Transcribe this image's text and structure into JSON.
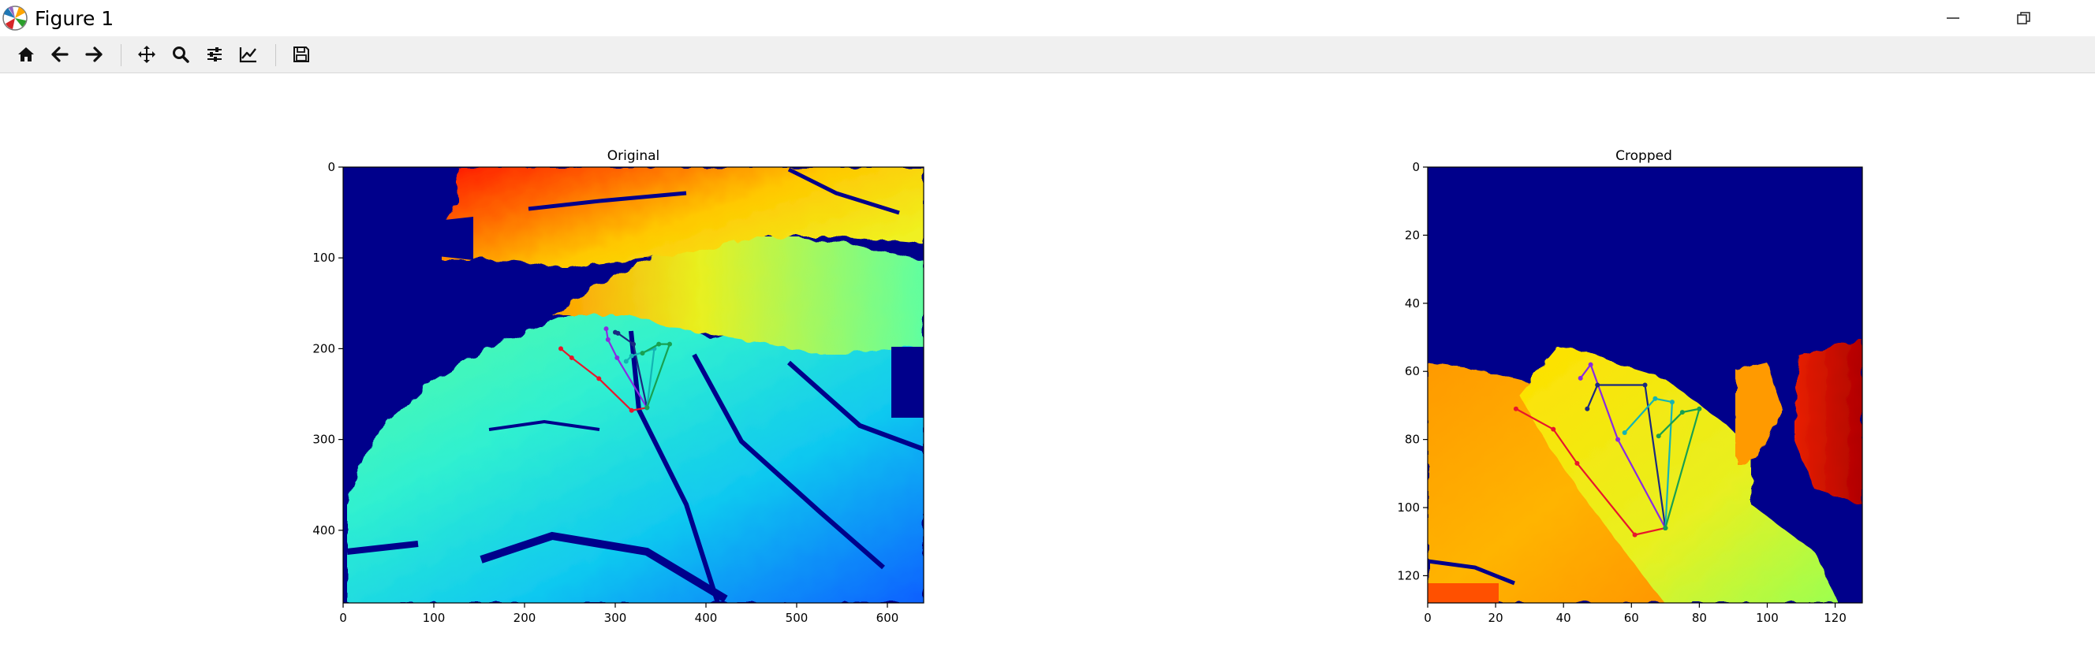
{
  "window": {
    "title": "Figure 1",
    "controls": {
      "minimize": "minimize",
      "restore": "restore"
    }
  },
  "toolbar": {
    "buttons": [
      {
        "name": "home",
        "icon": "home-icon"
      },
      {
        "name": "back",
        "icon": "arrow-left-icon"
      },
      {
        "name": "forward",
        "icon": "arrow-right-icon"
      },
      {
        "name": "pan",
        "icon": "move-icon"
      },
      {
        "name": "zoom",
        "icon": "magnifier-icon"
      },
      {
        "name": "configure-subplots",
        "icon": "sliders-icon"
      },
      {
        "name": "edit-axis",
        "icon": "line-chart-icon"
      },
      {
        "name": "save",
        "icon": "floppy-disk-icon"
      }
    ]
  },
  "colors": {
    "background_dark": "#00008b",
    "toolbar": "#f0f0f0",
    "finger_red": "#e8162c",
    "finger_purple": "#8a2be2",
    "finger_navy": "#1a2a80",
    "finger_teal": "#14b4b4",
    "finger_green": "#18a050"
  },
  "chart_data": [
    {
      "type": "heatmap",
      "title": "Original",
      "colormap": "jet",
      "xlim": [
        0,
        640
      ],
      "ylim": [
        480,
        0
      ],
      "xticks": [
        "0",
        "100",
        "200",
        "300",
        "400",
        "500",
        "600"
      ],
      "yticks": [
        "0",
        "100",
        "200",
        "300",
        "400"
      ],
      "keypoints": {
        "wrist": [
          335,
          265
        ],
        "fingers": [
          {
            "name": "thumb",
            "color": "#e8162c",
            "points": [
              [
                335,
                265
              ],
              [
                318,
                268
              ],
              [
                282,
                233
              ],
              [
                252,
                210
              ],
              [
                240,
                200
              ]
            ]
          },
          {
            "name": "index",
            "color": "#8a2be2",
            "points": [
              [
                335,
                265
              ],
              [
                302,
                210
              ],
              [
                292,
                190
              ],
              [
                290,
                178
              ]
            ]
          },
          {
            "name": "middle",
            "color": "#1a2a80",
            "points": [
              [
                335,
                265
              ],
              [
                320,
                195
              ],
              [
                303,
                183
              ],
              [
                300,
                182
              ]
            ]
          },
          {
            "name": "ring",
            "color": "#14b4b4",
            "points": [
              [
                335,
                265
              ],
              [
                343,
                200
              ],
              [
                318,
                208
              ],
              [
                312,
                214
              ]
            ]
          },
          {
            "name": "pinky",
            "color": "#18a050",
            "points": [
              [
                335,
                265
              ],
              [
                360,
                195
              ],
              [
                348,
                195
              ],
              [
                330,
                205
              ]
            ]
          }
        ]
      }
    },
    {
      "type": "heatmap",
      "title": "Cropped",
      "colormap": "jet",
      "xlim": [
        0,
        128
      ],
      "ylim": [
        128,
        0
      ],
      "xticks": [
        "0",
        "20",
        "40",
        "60",
        "80",
        "100",
        "120"
      ],
      "yticks": [
        "0",
        "20",
        "40",
        "60",
        "80",
        "100",
        "120"
      ],
      "keypoints": {
        "wrist": [
          70,
          106
        ],
        "fingers": [
          {
            "name": "thumb",
            "color": "#e8162c",
            "points": [
              [
                70,
                106
              ],
              [
                61,
                108
              ],
              [
                44,
                87
              ],
              [
                37,
                77
              ],
              [
                26,
                71
              ]
            ]
          },
          {
            "name": "index",
            "color": "#8a2be2",
            "points": [
              [
                70,
                106
              ],
              [
                56,
                80
              ],
              [
                48,
                58
              ],
              [
                45,
                62
              ]
            ]
          },
          {
            "name": "middle",
            "color": "#1a2a80",
            "points": [
              [
                70,
                106
              ],
              [
                64,
                64
              ],
              [
                50,
                64
              ],
              [
                47,
                71
              ]
            ]
          },
          {
            "name": "ring",
            "color": "#14b4b4",
            "points": [
              [
                70,
                106
              ],
              [
                72,
                69
              ],
              [
                67,
                68
              ],
              [
                58,
                78
              ]
            ]
          },
          {
            "name": "pinky",
            "color": "#18a050",
            "points": [
              [
                70,
                106
              ],
              [
                80,
                71
              ],
              [
                75,
                72
              ],
              [
                68,
                79
              ]
            ]
          }
        ]
      }
    }
  ]
}
